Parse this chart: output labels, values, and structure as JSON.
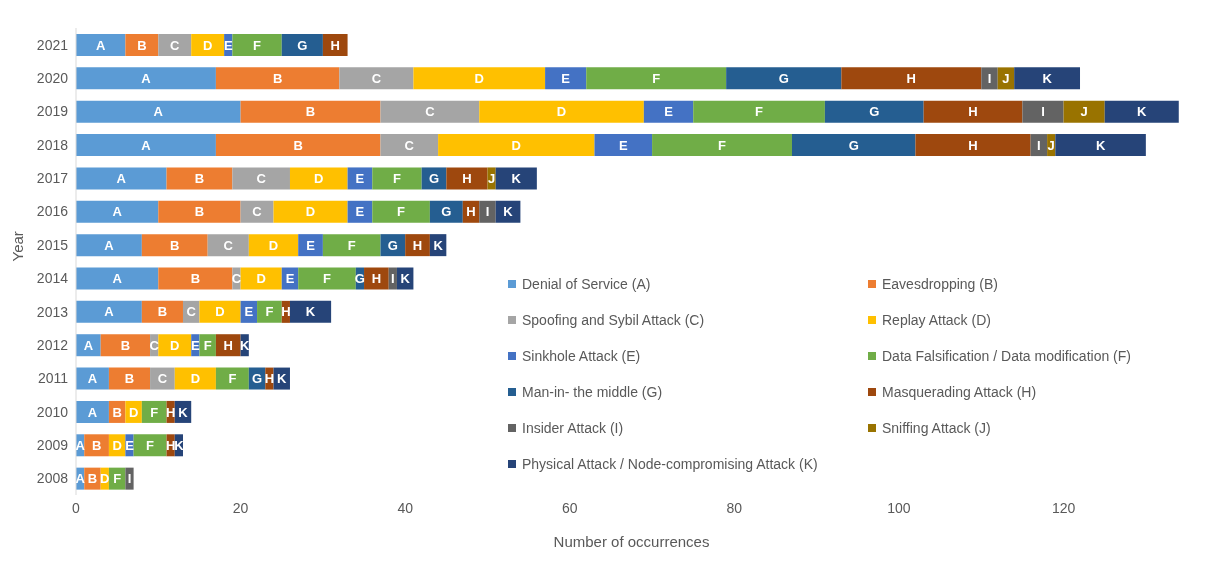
{
  "chart_data": {
    "type": "bar",
    "orientation": "horizontal",
    "stacked": true,
    "xlabel": "Number of occurrences",
    "ylabel": "Year",
    "categories": [
      "2021",
      "2020",
      "2019",
      "2018",
      "2017",
      "2016",
      "2015",
      "2014",
      "2013",
      "2012",
      "2011",
      "2010",
      "2009",
      "2008"
    ],
    "xlim": [
      0,
      135
    ],
    "xticks": [
      0,
      20,
      40,
      60,
      80,
      100,
      120
    ],
    "grid": false,
    "legend": "right",
    "series": [
      {
        "name": "Denial of Service (A)",
        "color": "#5b9bd5",
        "values": [
          6,
          17,
          20,
          17,
          11,
          10,
          8,
          10,
          8,
          3,
          4,
          4,
          1,
          1
        ],
        "value_labels": [
          "A",
          "A",
          "A",
          "A",
          "A",
          "A",
          "A",
          "A",
          "A",
          "A",
          "A",
          "A",
          "A",
          "A"
        ]
      },
      {
        "name": "Eavesdropping (B)",
        "color": "#ed7d31",
        "values": [
          4,
          15,
          17,
          20,
          8,
          10,
          8,
          9,
          5,
          6,
          5,
          2,
          3,
          2
        ],
        "value_labels": [
          "B",
          "B",
          "B",
          "B",
          "B",
          "B",
          "B",
          "B",
          "B",
          "B",
          "B",
          "B",
          "B",
          "B"
        ]
      },
      {
        "name": "Spoofing and Sybil Attack (C)",
        "color": "#a5a5a5",
        "values": [
          4,
          9,
          12,
          7,
          7,
          4,
          5,
          1,
          2,
          1,
          3,
          null,
          null,
          null
        ],
        "value_labels": [
          "C",
          "C",
          "C",
          "C",
          "C",
          "C",
          "C",
          "C",
          "C",
          "C",
          "C",
          null,
          null,
          null
        ]
      },
      {
        "name": "Replay Attack (D)",
        "color": "#ffc000",
        "values": [
          4,
          16,
          20,
          19,
          7,
          9,
          6,
          5,
          5,
          4,
          5,
          2,
          2,
          1
        ],
        "value_labels": [
          "D",
          "D",
          "D",
          "D",
          "D",
          "D",
          "D",
          "D",
          "D",
          "D",
          "D",
          "D",
          "D",
          "D"
        ]
      },
      {
        "name": "Sinkhole Attack (E)",
        "color": "#4472c4",
        "values": [
          1,
          5,
          6,
          7,
          3,
          3,
          3,
          2,
          2,
          1,
          null,
          null,
          1,
          null
        ],
        "value_labels": [
          "E",
          "E",
          "E",
          "E",
          "E",
          "E",
          "E",
          "E",
          "E",
          "E",
          null,
          null,
          "E",
          null
        ]
      },
      {
        "name": "Data Falsification / Data modification (F)",
        "color": "#70ad47",
        "values": [
          6,
          17,
          16,
          17,
          6,
          7,
          7,
          7,
          3,
          2,
          4,
          3,
          4,
          2
        ],
        "value_labels": [
          "F",
          "F",
          "F",
          "F",
          "F",
          "F",
          "F",
          "F",
          "F",
          "F",
          "F",
          "F",
          "F",
          "F"
        ]
      },
      {
        "name": "Man-in- the middle (G)",
        "color": "#255e91",
        "values": [
          5,
          14,
          12,
          15,
          3,
          4,
          3,
          1,
          null,
          null,
          2,
          null,
          null,
          null
        ],
        "value_labels": [
          "G",
          "G",
          "G",
          "G",
          "G",
          "G",
          "G",
          "G",
          null,
          null,
          "G",
          null,
          null,
          null
        ]
      },
      {
        "name": "Masquerading Attack (H)",
        "color": "#9e480e",
        "values": [
          3,
          17,
          12,
          14,
          5,
          2,
          3,
          3,
          1,
          3,
          1,
          1,
          1,
          null
        ],
        "value_labels": [
          "H",
          "H",
          "H",
          "H",
          "H",
          "H",
          "H",
          "H",
          "H",
          "H",
          "H",
          "H",
          "H",
          null
        ]
      },
      {
        "name": "Insider Attack (I)",
        "color": "#636363",
        "values": [
          null,
          2,
          5,
          2,
          null,
          2,
          null,
          1,
          null,
          null,
          null,
          null,
          null,
          1
        ],
        "value_labels": [
          null,
          "I",
          "I",
          "I",
          null,
          "I",
          null,
          "I",
          null,
          null,
          null,
          null,
          null,
          "I"
        ]
      },
      {
        "name": "Sniffing Attack (J)",
        "color": "#997300",
        "values": [
          null,
          2,
          5,
          1,
          1,
          null,
          null,
          null,
          null,
          null,
          null,
          null,
          null,
          null
        ],
        "value_labels": [
          null,
          "J",
          "J",
          "J",
          "J",
          null,
          null,
          null,
          null,
          null,
          null,
          null,
          null,
          null
        ]
      },
      {
        "name": "Physical Attack / Node-compromising Attack (K)",
        "color": "#264478",
        "values": [
          null,
          8,
          9,
          11,
          5,
          3,
          2,
          2,
          5,
          1,
          2,
          2,
          1,
          null
        ],
        "value_labels": [
          null,
          "K",
          "K",
          "K",
          "K",
          "K",
          "K",
          "K",
          "K",
          "K",
          "K",
          "K",
          "K",
          null
        ]
      }
    ]
  }
}
